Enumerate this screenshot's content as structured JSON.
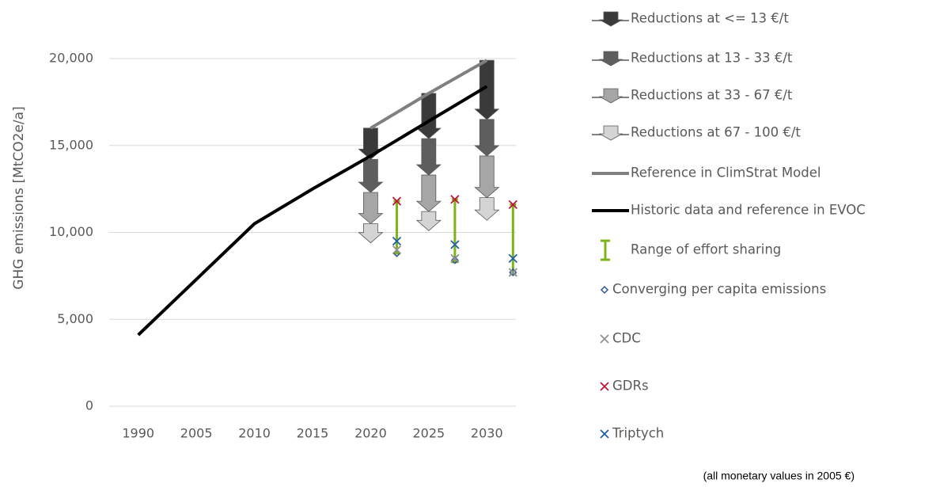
{
  "chart_data": {
    "type": "line",
    "y_label": "GHG emissions  [MtCO2e/a]",
    "note": "(all monetary values in 2005 €)",
    "categories": [
      "1990",
      "2005",
      "2010",
      "2015",
      "2020",
      "2025",
      "2030"
    ],
    "ylim": [
      0,
      20000
    ],
    "yticks": [
      0,
      {
        "value": 5000,
        "label": "5,000"
      },
      {
        "value": 10000,
        "label": "10,000"
      },
      {
        "value": 15000,
        "label": "15,000"
      },
      {
        "value": 20000,
        "label": "20,000"
      }
    ],
    "grid": true,
    "series": [
      {
        "name": "Reductions at <= 13 €/t",
        "kind": "arrow",
        "color": "#3a3a3a",
        "values": [
          null,
          null,
          null,
          null,
          1800,
          2600,
          3400
        ]
      },
      {
        "name": "Reductions at 13 - 33 €/t",
        "kind": "arrow",
        "color": "#5e5e5e",
        "values": [
          null,
          null,
          null,
          null,
          1900,
          2100,
          2100
        ]
      },
      {
        "name": "Reductions at 33 - 67 €/t",
        "kind": "arrow",
        "color": "#a6a6a6",
        "values": [
          null,
          null,
          null,
          null,
          1800,
          2100,
          2400
        ]
      },
      {
        "name": "Reductions at 67 - 100 €/t",
        "kind": "arrow",
        "color": "#d4d4d4",
        "values": [
          null,
          null,
          null,
          null,
          1100,
          1100,
          1300
        ]
      },
      {
        "name": "Reference in ClimStrat Model",
        "kind": "line",
        "color": "#808080",
        "values": [
          null,
          null,
          null,
          null,
          16000,
          18000,
          19900
        ]
      },
      {
        "name": "Historic data and reference in EVOC",
        "kind": "line",
        "color": "#000000",
        "values": [
          4100,
          7300,
          10500,
          12500,
          14400,
          16400,
          18400
        ]
      },
      {
        "name": "Range of effort sharing",
        "kind": "range",
        "color": "#7cb518",
        "low": [
          null,
          null,
          null,
          null,
          8800,
          8300,
          7600
        ],
        "high": [
          null,
          null,
          null,
          null,
          11800,
          11900,
          11600
        ]
      },
      {
        "name": "Converging per capita emissions",
        "kind": "marker",
        "marker": "diamond",
        "color": "#2f5597",
        "values": [
          null,
          null,
          null,
          null,
          8800,
          8400,
          7700
        ]
      },
      {
        "name": "CDC",
        "kind": "marker",
        "marker": "x",
        "color": "#909090",
        "values": [
          null,
          null,
          null,
          null,
          9000,
          8500,
          7700
        ]
      },
      {
        "name": "GDRs",
        "kind": "marker",
        "marker": "x",
        "color": "#c0143c",
        "values": [
          null,
          null,
          null,
          null,
          11800,
          11900,
          11600
        ]
      },
      {
        "name": "Triptych",
        "kind": "marker",
        "marker": "x",
        "color": "#1f5fa8",
        "values": [
          null,
          null,
          null,
          null,
          9500,
          9300,
          8500
        ]
      }
    ]
  }
}
